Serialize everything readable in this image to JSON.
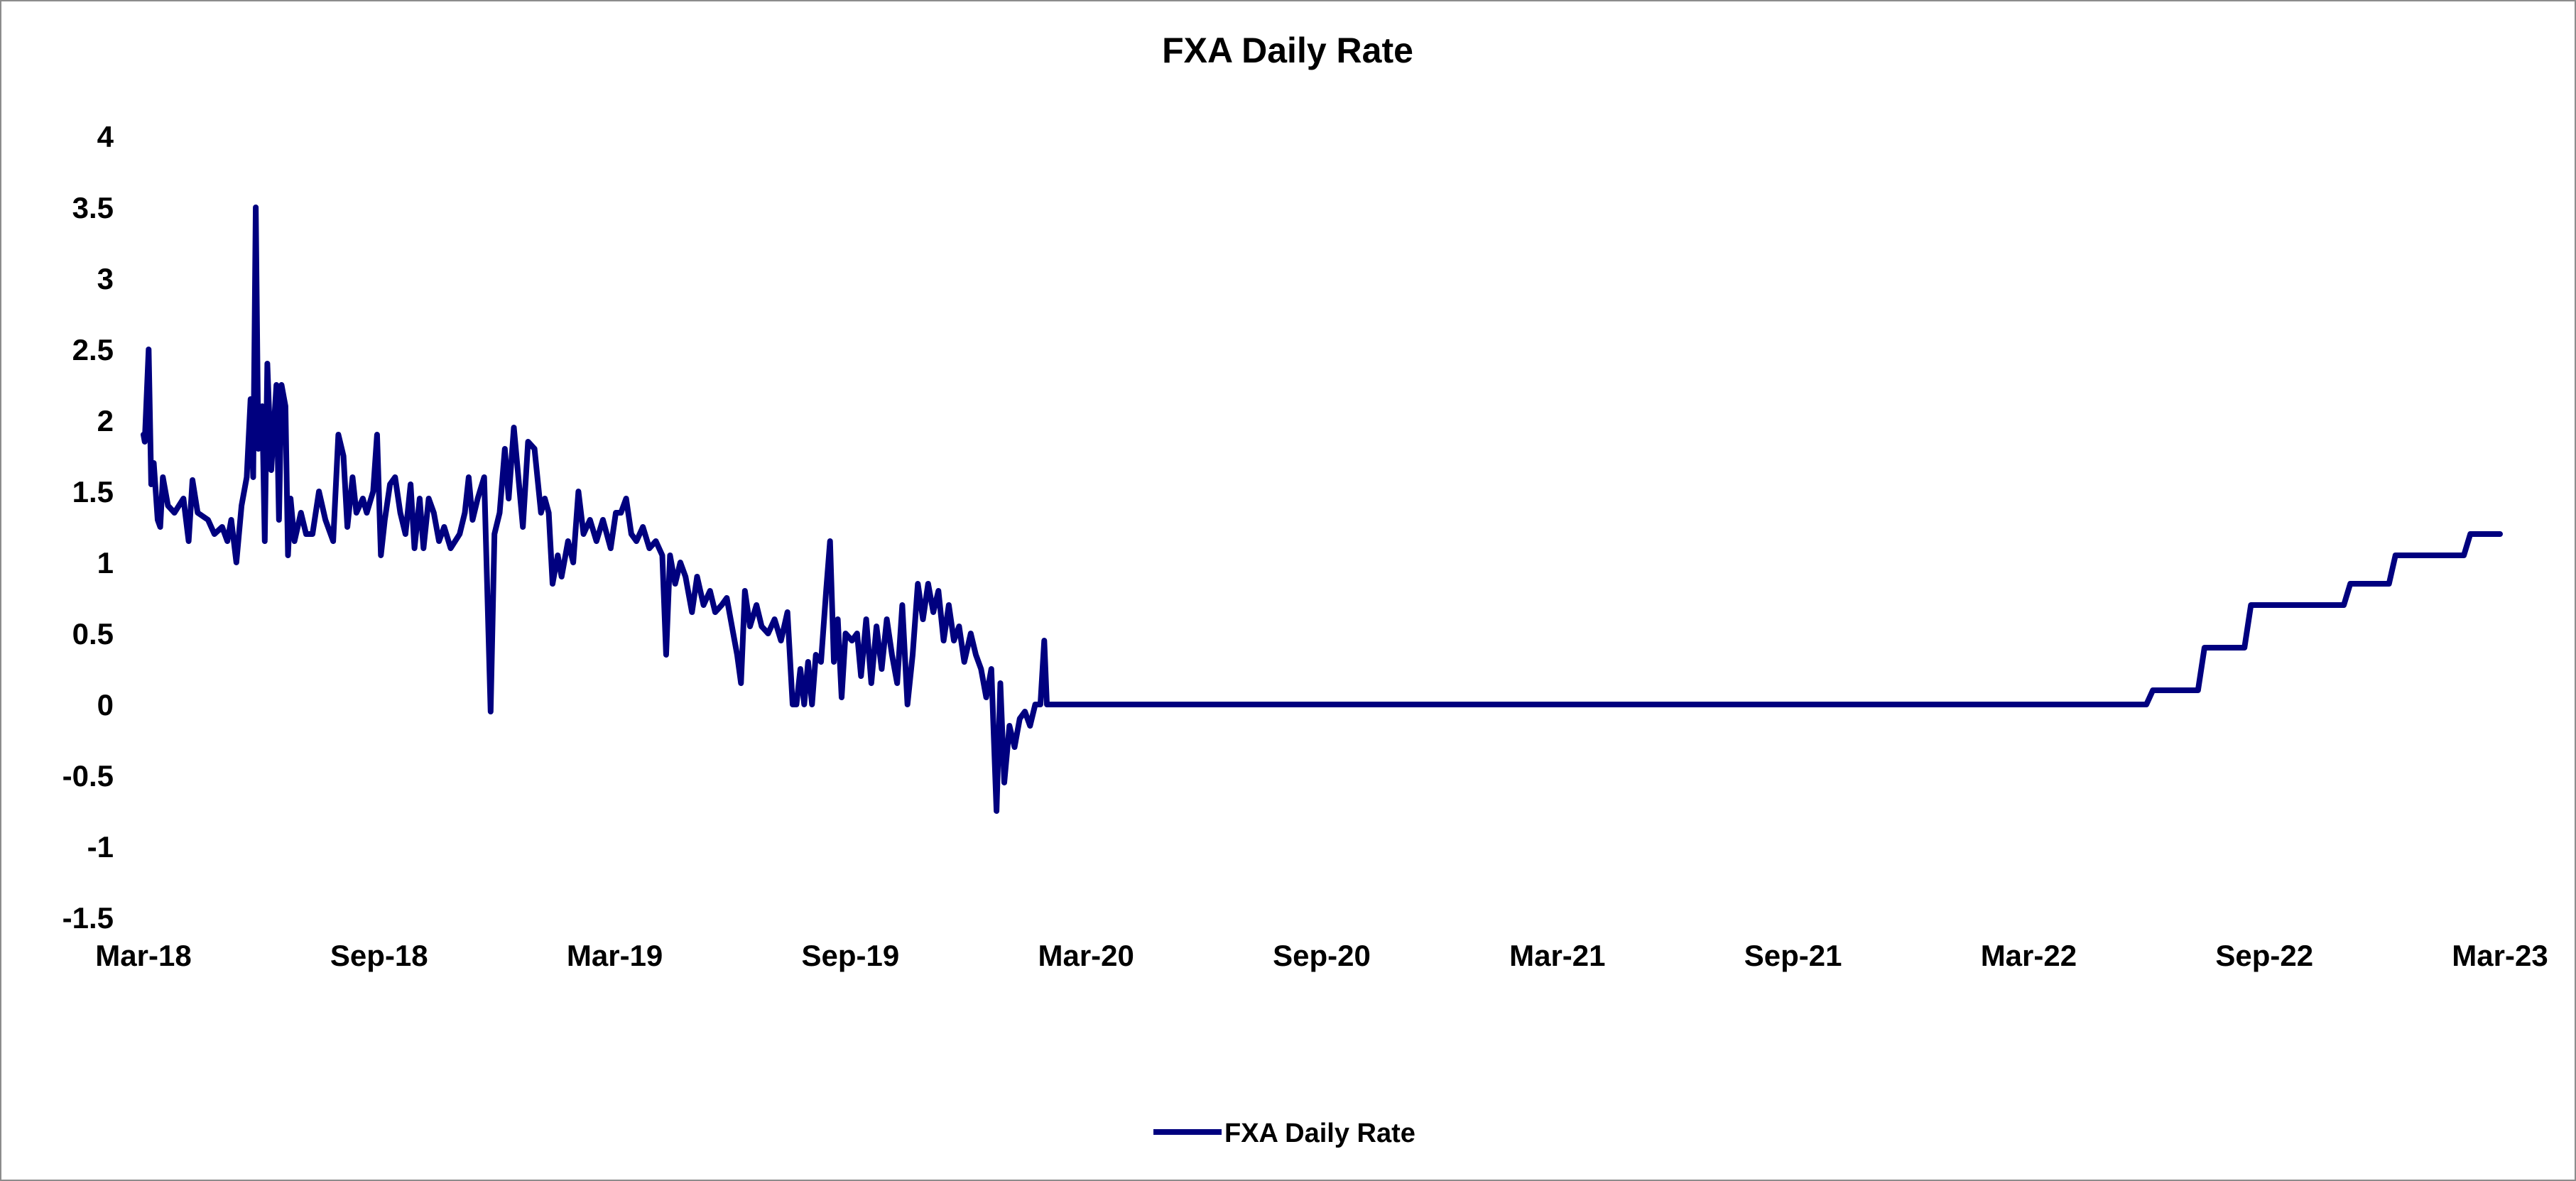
{
  "chart_data": {
    "type": "line",
    "title": "FXA Daily Rate",
    "xlabel": "",
    "ylabel": "",
    "x_ticks": [
      "Mar-18",
      "Sep-18",
      "Mar-19",
      "Sep-19",
      "Mar-20",
      "Sep-20",
      "Mar-21",
      "Sep-21",
      "Mar-22",
      "Sep-22",
      "Mar-23"
    ],
    "x_range": [
      "2018-03-01",
      "2023-03-01"
    ],
    "y_ticks": [
      "4",
      "3.5",
      "3",
      "2.5",
      "2",
      "1.5",
      "1",
      "0.5",
      "0",
      "-0.5",
      "-1",
      "-1.5"
    ],
    "ylim": [
      -1.5,
      4
    ],
    "grid": false,
    "legend_position": "bottom-center",
    "series": [
      {
        "name": "FXA Daily Rate",
        "color": "#00007f",
        "points": [
          [
            "2018-03-01",
            1.9
          ],
          [
            "2018-03-02",
            1.85
          ],
          [
            "2018-03-05",
            2.5
          ],
          [
            "2018-03-07",
            1.55
          ],
          [
            "2018-03-09",
            1.7
          ],
          [
            "2018-03-12",
            1.3
          ],
          [
            "2018-03-14",
            1.25
          ],
          [
            "2018-03-16",
            1.6
          ],
          [
            "2018-03-20",
            1.4
          ],
          [
            "2018-03-25",
            1.35
          ],
          [
            "2018-04-01",
            1.45
          ],
          [
            "2018-04-05",
            1.15
          ],
          [
            "2018-04-08",
            1.58
          ],
          [
            "2018-04-12",
            1.35
          ],
          [
            "2018-04-20",
            1.3
          ],
          [
            "2018-04-25",
            1.2
          ],
          [
            "2018-05-01",
            1.25
          ],
          [
            "2018-05-05",
            1.15
          ],
          [
            "2018-05-08",
            1.3
          ],
          [
            "2018-05-12",
            1.0
          ],
          [
            "2018-05-16",
            1.4
          ],
          [
            "2018-05-20",
            1.6
          ],
          [
            "2018-05-23",
            2.15
          ],
          [
            "2018-05-25",
            1.6
          ],
          [
            "2018-05-27",
            3.5
          ],
          [
            "2018-05-29",
            1.8
          ],
          [
            "2018-06-01",
            2.1
          ],
          [
            "2018-06-03",
            1.15
          ],
          [
            "2018-06-05",
            2.4
          ],
          [
            "2018-06-08",
            1.65
          ],
          [
            "2018-06-12",
            2.25
          ],
          [
            "2018-06-14",
            1.3
          ],
          [
            "2018-06-16",
            2.25
          ],
          [
            "2018-06-19",
            2.1
          ],
          [
            "2018-06-21",
            1.05
          ],
          [
            "2018-06-23",
            1.45
          ],
          [
            "2018-06-26",
            1.15
          ],
          [
            "2018-07-01",
            1.35
          ],
          [
            "2018-07-05",
            1.2
          ],
          [
            "2018-07-10",
            1.2
          ],
          [
            "2018-07-15",
            1.5
          ],
          [
            "2018-07-20",
            1.3
          ],
          [
            "2018-07-26",
            1.15
          ],
          [
            "2018-07-30",
            1.9
          ],
          [
            "2018-08-03",
            1.75
          ],
          [
            "2018-08-06",
            1.25
          ],
          [
            "2018-08-10",
            1.6
          ],
          [
            "2018-08-13",
            1.35
          ],
          [
            "2018-08-18",
            1.45
          ],
          [
            "2018-08-21",
            1.35
          ],
          [
            "2018-08-26",
            1.5
          ],
          [
            "2018-08-29",
            1.9
          ],
          [
            "2018-09-01",
            1.05
          ],
          [
            "2018-09-04",
            1.3
          ],
          [
            "2018-09-08",
            1.55
          ],
          [
            "2018-09-12",
            1.6
          ],
          [
            "2018-09-16",
            1.35
          ],
          [
            "2018-09-20",
            1.2
          ],
          [
            "2018-09-24",
            1.55
          ],
          [
            "2018-09-27",
            1.1
          ],
          [
            "2018-10-01",
            1.45
          ],
          [
            "2018-10-04",
            1.1
          ],
          [
            "2018-10-08",
            1.45
          ],
          [
            "2018-10-12",
            1.35
          ],
          [
            "2018-10-16",
            1.15
          ],
          [
            "2018-10-20",
            1.25
          ],
          [
            "2018-10-25",
            1.1
          ],
          [
            "2018-11-01",
            1.2
          ],
          [
            "2018-11-05",
            1.35
          ],
          [
            "2018-11-08",
            1.6
          ],
          [
            "2018-11-11",
            1.3
          ],
          [
            "2018-11-15",
            1.45
          ],
          [
            "2018-11-20",
            1.6
          ],
          [
            "2018-11-25",
            -0.05
          ],
          [
            "2018-11-28",
            1.2
          ],
          [
            "2018-12-02",
            1.35
          ],
          [
            "2018-12-06",
            1.8
          ],
          [
            "2018-12-09",
            1.45
          ],
          [
            "2018-12-13",
            1.95
          ],
          [
            "2018-12-17",
            1.55
          ],
          [
            "2018-12-20",
            1.25
          ],
          [
            "2018-12-24",
            1.85
          ],
          [
            "2018-12-29",
            1.8
          ],
          [
            "2019-01-03",
            1.35
          ],
          [
            "2019-01-06",
            1.45
          ],
          [
            "2019-01-09",
            1.35
          ],
          [
            "2019-01-12",
            0.85
          ],
          [
            "2019-01-16",
            1.05
          ],
          [
            "2019-01-19",
            0.9
          ],
          [
            "2019-01-24",
            1.15
          ],
          [
            "2019-01-28",
            1.0
          ],
          [
            "2019-02-01",
            1.5
          ],
          [
            "2019-02-05",
            1.2
          ],
          [
            "2019-02-10",
            1.3
          ],
          [
            "2019-02-15",
            1.15
          ],
          [
            "2019-02-20",
            1.3
          ],
          [
            "2019-02-26",
            1.1
          ],
          [
            "2019-03-02",
            1.35
          ],
          [
            "2019-03-06",
            1.35
          ],
          [
            "2019-03-10",
            1.45
          ],
          [
            "2019-03-14",
            1.2
          ],
          [
            "2019-03-18",
            1.15
          ],
          [
            "2019-03-23",
            1.25
          ],
          [
            "2019-03-28",
            1.1
          ],
          [
            "2019-04-02",
            1.15
          ],
          [
            "2019-04-07",
            1.05
          ],
          [
            "2019-04-10",
            0.35
          ],
          [
            "2019-04-13",
            1.05
          ],
          [
            "2019-04-17",
            0.85
          ],
          [
            "2019-04-21",
            1.0
          ],
          [
            "2019-04-25",
            0.9
          ],
          [
            "2019-04-30",
            0.65
          ],
          [
            "2019-05-04",
            0.9
          ],
          [
            "2019-05-09",
            0.7
          ],
          [
            "2019-05-14",
            0.8
          ],
          [
            "2019-05-18",
            0.65
          ],
          [
            "2019-05-23",
            0.7
          ],
          [
            "2019-05-27",
            0.75
          ],
          [
            "2019-06-01",
            0.5
          ],
          [
            "2019-06-04",
            0.35
          ],
          [
            "2019-06-07",
            0.15
          ],
          [
            "2019-06-10",
            0.8
          ],
          [
            "2019-06-14",
            0.55
          ],
          [
            "2019-06-19",
            0.7
          ],
          [
            "2019-06-23",
            0.55
          ],
          [
            "2019-06-28",
            0.5
          ],
          [
            "2019-07-03",
            0.6
          ],
          [
            "2019-07-08",
            0.45
          ],
          [
            "2019-07-13",
            0.65
          ],
          [
            "2019-07-17",
            0.0
          ],
          [
            "2019-07-20",
            0.0
          ],
          [
            "2019-07-23",
            0.25
          ],
          [
            "2019-07-26",
            0.0
          ],
          [
            "2019-07-29",
            0.3
          ],
          [
            "2019-08-01",
            0.0
          ],
          [
            "2019-08-04",
            0.35
          ],
          [
            "2019-08-08",
            0.3
          ],
          [
            "2019-08-12",
            0.8
          ],
          [
            "2019-08-15",
            1.15
          ],
          [
            "2019-08-18",
            0.3
          ],
          [
            "2019-08-21",
            0.6
          ],
          [
            "2019-08-24",
            0.05
          ],
          [
            "2019-08-27",
            0.5
          ],
          [
            "2019-09-01",
            0.45
          ],
          [
            "2019-09-05",
            0.5
          ],
          [
            "2019-09-08",
            0.2
          ],
          [
            "2019-09-12",
            0.6
          ],
          [
            "2019-09-16",
            0.15
          ],
          [
            "2019-09-20",
            0.55
          ],
          [
            "2019-09-24",
            0.25
          ],
          [
            "2019-09-28",
            0.6
          ],
          [
            "2019-10-02",
            0.35
          ],
          [
            "2019-10-06",
            0.15
          ],
          [
            "2019-10-10",
            0.7
          ],
          [
            "2019-10-14",
            0.0
          ],
          [
            "2019-10-18",
            0.35
          ],
          [
            "2019-10-22",
            0.85
          ],
          [
            "2019-10-26",
            0.6
          ],
          [
            "2019-10-30",
            0.85
          ],
          [
            "2019-11-03",
            0.65
          ],
          [
            "2019-11-07",
            0.8
          ],
          [
            "2019-11-11",
            0.45
          ],
          [
            "2019-11-15",
            0.7
          ],
          [
            "2019-11-19",
            0.45
          ],
          [
            "2019-11-23",
            0.55
          ],
          [
            "2019-11-27",
            0.3
          ],
          [
            "2019-12-02",
            0.5
          ],
          [
            "2019-12-06",
            0.35
          ],
          [
            "2019-12-10",
            0.25
          ],
          [
            "2019-12-14",
            0.05
          ],
          [
            "2019-12-18",
            0.25
          ],
          [
            "2019-12-22",
            -0.75
          ],
          [
            "2019-12-25",
            0.15
          ],
          [
            "2019-12-28",
            -0.55
          ],
          [
            "2020-01-01",
            -0.15
          ],
          [
            "2020-01-05",
            -0.3
          ],
          [
            "2020-01-09",
            -0.1
          ],
          [
            "2020-01-13",
            -0.05
          ],
          [
            "2020-01-17",
            -0.15
          ],
          [
            "2020-01-21",
            0.0
          ],
          [
            "2020-01-25",
            0.0
          ],
          [
            "2020-01-28",
            0.45
          ],
          [
            "2020-01-30",
            0.0
          ],
          [
            "2022-05-31",
            0.0
          ],
          [
            "2022-06-05",
            0.1
          ],
          [
            "2022-07-10",
            0.1
          ],
          [
            "2022-07-15",
            0.4
          ],
          [
            "2022-08-15",
            0.4
          ],
          [
            "2022-08-20",
            0.7
          ],
          [
            "2022-10-31",
            0.7
          ],
          [
            "2022-11-05",
            0.85
          ],
          [
            "2022-12-05",
            0.85
          ],
          [
            "2022-12-10",
            1.05
          ],
          [
            "2023-02-01",
            1.05
          ],
          [
            "2023-02-06",
            1.2
          ],
          [
            "2023-03-01",
            1.2
          ]
        ]
      }
    ]
  }
}
